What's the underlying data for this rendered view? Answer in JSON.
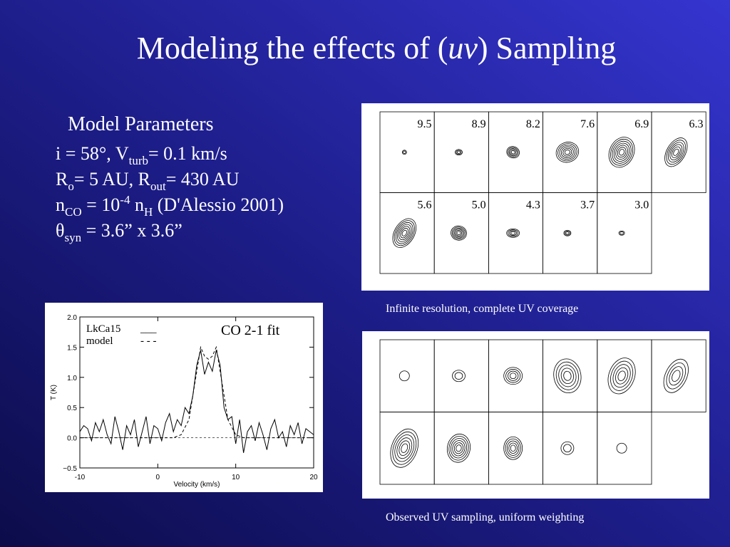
{
  "title": [
    "Modeling the effects of (",
    "uv",
    ") Sampling"
  ],
  "params": {
    "heading": "Model Parameters",
    "lines": [
      [
        {
          "text": "i = 58°, V"
        },
        {
          "text": "turb",
          "shift": "sub"
        },
        {
          "text": "= 0.1 km/s"
        }
      ],
      [
        {
          "text": "R"
        },
        {
          "text": "o",
          "shift": "sub"
        },
        {
          "text": "= 5 AU, R"
        },
        {
          "text": "out",
          "shift": "sub"
        },
        {
          "text": "= 430 AU"
        }
      ],
      [
        {
          "text": "n"
        },
        {
          "text": "CO",
          "shift": "sub"
        },
        {
          "text": " = 10"
        },
        {
          "text": "-4",
          "shift": "sup"
        },
        {
          "text": " n"
        },
        {
          "text": "H",
          "shift": "sub"
        },
        {
          "text": " (D'Alessio 2001)"
        }
      ],
      [
        {
          "text": "θ"
        },
        {
          "text": "syn",
          "shift": "sub"
        },
        {
          "text": " = 3.6” x 3.6”"
        }
      ]
    ]
  },
  "top_figure": {
    "panel_labels": [
      "9.5",
      "8.9",
      "8.2",
      "7.6",
      "6.9",
      "6.3",
      "5.6",
      "5.0",
      "4.3",
      "3.7",
      "3.0"
    ],
    "caption": "Infinite resolution, complete UV coverage"
  },
  "bottom_figure": {
    "caption": "Observed UV sampling, uniform weighting"
  },
  "spectrum": {
    "type": "line",
    "annotation": "CO 2-1 fit",
    "xlabel": "Velocity (km/s)",
    "ylabel": "T  (K)",
    "xlim": [
      -10,
      20
    ],
    "xticks": [
      -10,
      0,
      10,
      20
    ],
    "ylim": [
      -0.5,
      2.0
    ],
    "yticks": [
      {
        "value": -0.5,
        "label": "−0.5"
      },
      {
        "value": 0,
        "label": "0.0"
      },
      {
        "value": 0.5,
        "label": "0.5"
      },
      {
        "value": 1,
        "label": "1.0"
      },
      {
        "value": 1.5,
        "label": "1.5"
      },
      {
        "value": 2,
        "label": "2.0"
      }
    ],
    "series": [
      {
        "name": "LkCa15",
        "legend_symbol": "___",
        "style": "solid",
        "x": [
          -10,
          -9.5,
          -9,
          -8.5,
          -8,
          -7.5,
          -7,
          -6.5,
          -6,
          -5.5,
          -5,
          -4.5,
          -4,
          -3.5,
          -3,
          -2.5,
          -2,
          -1.5,
          -1,
          -0.5,
          0,
          0.5,
          1,
          1.5,
          2,
          2.5,
          3,
          3.5,
          4,
          4.5,
          5,
          5.5,
          6,
          6.5,
          7,
          7.5,
          8,
          8.5,
          9,
          9.5,
          10,
          10.5,
          11,
          11.5,
          12,
          12.5,
          13,
          13.5,
          14,
          14.5,
          15,
          15.5,
          16,
          16.5,
          17,
          17.5,
          18,
          18.5,
          19,
          19.5,
          20
        ],
        "values": [
          0.1,
          0.2,
          0.15,
          -0.05,
          0.25,
          0.1,
          0.3,
          0.05,
          -0.1,
          0.35,
          0.1,
          -0.2,
          0.2,
          0.05,
          0.3,
          -0.15,
          0.1,
          0.35,
          -0.1,
          0.2,
          0.15,
          -0.05,
          0.25,
          0.4,
          0.1,
          0.3,
          0.2,
          0.5,
          0.4,
          0.7,
          1.2,
          1.45,
          1.05,
          1.25,
          1.1,
          1.45,
          1.2,
          0.5,
          0.3,
          0.35,
          -0.1,
          0.3,
          -0.25,
          0.1,
          0.2,
          -0.05,
          0.25,
          0.05,
          -0.2,
          0.15,
          0.3,
          0,
          0.1,
          -0.15,
          0.2,
          0.05,
          0.25,
          -0.1,
          0.15,
          0.1,
          0.05
        ]
      },
      {
        "name": "model",
        "legend_symbol": "- - -",
        "style": "dashed",
        "x": [
          -10,
          2,
          3,
          4,
          5,
          5.5,
          6,
          6.5,
          7,
          7.5,
          8,
          9,
          10,
          11,
          20
        ],
        "values": [
          0,
          0,
          0.05,
          0.3,
          1.1,
          1.5,
          1.35,
          1.3,
          1.35,
          1.5,
          1.1,
          0.3,
          0.05,
          0,
          0
        ]
      }
    ]
  }
}
